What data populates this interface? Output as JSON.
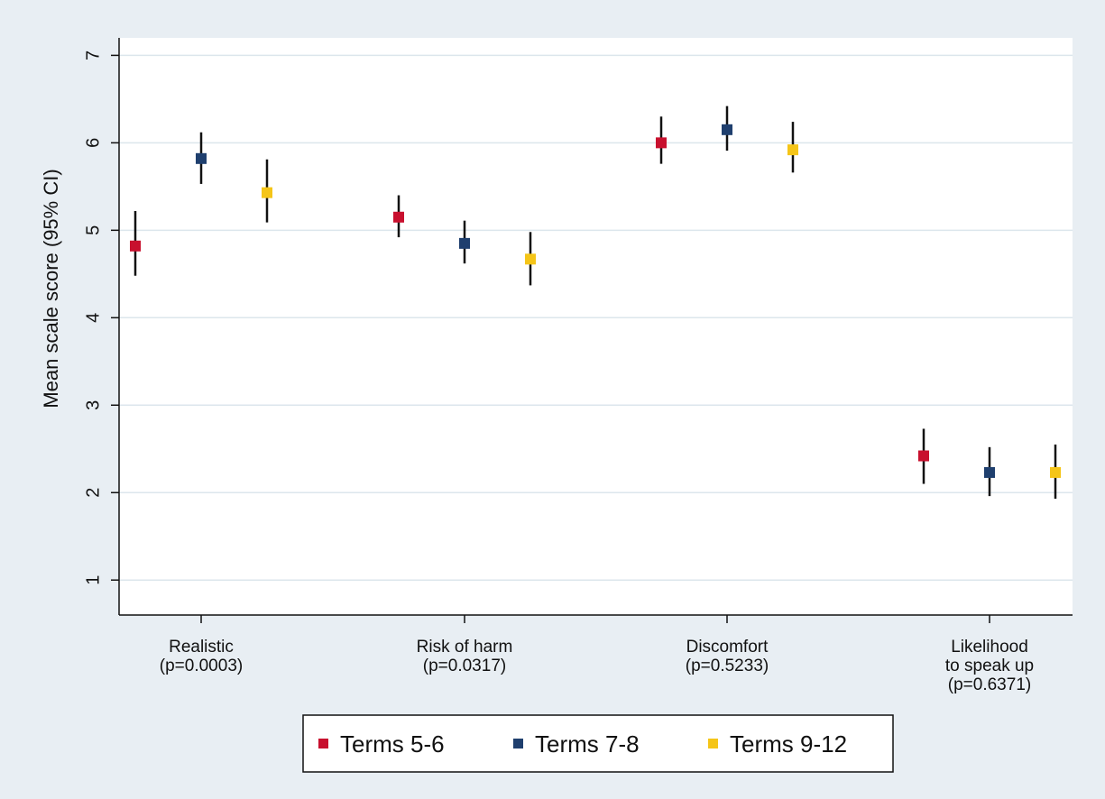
{
  "colors": {
    "background": "#e8eef3",
    "plot_background": "#ffffff",
    "grid": "#dce6ec",
    "error_bar": "#111111"
  },
  "chart_data": {
    "type": "scatter",
    "ylabel": "Mean scale score (95% CI)",
    "ylim": [
      0.6,
      7.2
    ],
    "yticks": [
      1,
      2,
      3,
      4,
      5,
      6,
      7
    ],
    "grid": true,
    "legend_position": "bottom",
    "categories": [
      {
        "label_lines": [
          "Realistic",
          "(p=0.0003)"
        ]
      },
      {
        "label_lines": [
          "Risk of harm",
          "(p=0.0317)"
        ]
      },
      {
        "label_lines": [
          "Discomfort",
          "(p=0.5233)"
        ]
      },
      {
        "label_lines": [
          "Likelihood",
          "to speak up",
          "(p=0.6371)"
        ]
      }
    ],
    "series": [
      {
        "name": "Terms 5-6",
        "color": "#c8102e",
        "values": [
          4.82,
          5.15,
          6.0,
          2.42
        ],
        "ci_low": [
          4.48,
          4.92,
          5.76,
          2.1
        ],
        "ci_high": [
          5.22,
          5.4,
          6.3,
          2.73
        ]
      },
      {
        "name": "Terms 7-8",
        "color": "#1f3f6e",
        "values": [
          5.82,
          4.85,
          6.15,
          2.23
        ],
        "ci_low": [
          5.53,
          4.62,
          5.91,
          1.96
        ],
        "ci_high": [
          6.12,
          5.11,
          6.42,
          2.52
        ]
      },
      {
        "name": "Terms 9-12",
        "color": "#f5c518",
        "values": [
          5.43,
          4.67,
          5.92,
          2.23
        ],
        "ci_low": [
          5.09,
          4.37,
          5.66,
          1.93
        ],
        "ci_high": [
          5.81,
          4.98,
          6.24,
          2.55
        ]
      }
    ]
  }
}
